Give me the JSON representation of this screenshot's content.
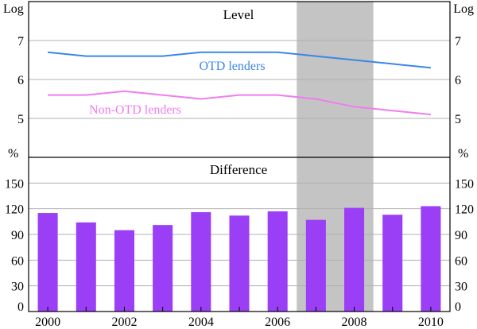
{
  "chart_data": {
    "type": "line+bar",
    "x_years": [
      2000,
      2001,
      2002,
      2003,
      2004,
      2005,
      2006,
      2007,
      2008,
      2009,
      2010
    ],
    "x_tick_labels": [
      "2000",
      "2002",
      "2004",
      "2006",
      "2008",
      "2010"
    ],
    "x_tick_values": [
      2000,
      2002,
      2004,
      2006,
      2008,
      2010
    ],
    "shaded_period": {
      "start": 2006.5,
      "end": 2008.5,
      "color": "#c4c4c4"
    },
    "top_panel": {
      "title": "Level",
      "unit_left": "Log",
      "unit_right": "Log",
      "ylim": [
        4,
        8
      ],
      "yticks": [
        5,
        6,
        7
      ],
      "series": [
        {
          "name": "OTD lenders",
          "color": "#3a87e8",
          "values": [
            6.7,
            6.6,
            6.6,
            6.6,
            6.7,
            6.7,
            6.7,
            6.6,
            6.5,
            6.4,
            6.3
          ]
        },
        {
          "name": "Non-OTD lenders",
          "color": "#f07cf0",
          "values": [
            5.6,
            5.6,
            5.7,
            5.6,
            5.5,
            5.6,
            5.6,
            5.5,
            5.3,
            5.2,
            5.1
          ]
        }
      ]
    },
    "bottom_panel": {
      "title": "Difference",
      "unit_left": "%",
      "unit_right": "%",
      "ylim": [
        0,
        180
      ],
      "yticks": [
        0,
        30,
        60,
        90,
        120,
        150
      ],
      "bar_color": "#9a3ff5",
      "values": [
        115,
        104,
        95,
        101,
        116,
        112,
        117,
        107,
        121,
        113,
        123
      ]
    }
  }
}
